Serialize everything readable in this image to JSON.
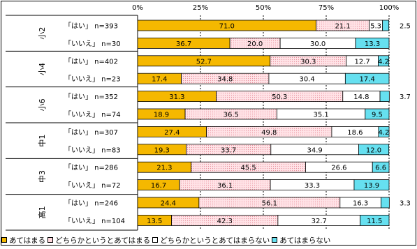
{
  "chart_data": {
    "type": "bar",
    "orientation": "horizontal",
    "stacked": true,
    "xlim": [
      0,
      100
    ],
    "x_ticks": [
      "0%",
      "25%",
      "50%",
      "75%",
      "100%"
    ],
    "groups": [
      "小2",
      "小4",
      "小6",
      "中1",
      "中3",
      "高1"
    ],
    "rows": [
      {
        "group": "小2",
        "label": "「はい」 n=393",
        "values": [
          71.0,
          21.1,
          5.3,
          2.5
        ]
      },
      {
        "group": "小2",
        "label": "「いいえ」 n=30",
        "values": [
          36.7,
          20.0,
          30.0,
          13.3
        ]
      },
      {
        "group": "小4",
        "label": "「はい」 n=402",
        "values": [
          52.7,
          30.3,
          12.7,
          4.2
        ]
      },
      {
        "group": "小4",
        "label": "「いいえ」 n=23",
        "values": [
          17.4,
          34.8,
          30.4,
          17.4
        ]
      },
      {
        "group": "小6",
        "label": "「はい」 n=352",
        "values": [
          31.3,
          50.3,
          14.8,
          3.7
        ]
      },
      {
        "group": "小6",
        "label": "「いいえ」 n=74",
        "values": [
          18.9,
          36.5,
          35.1,
          9.5
        ]
      },
      {
        "group": "中1",
        "label": "「はい」 n=307",
        "values": [
          27.4,
          49.8,
          18.6,
          4.2
        ]
      },
      {
        "group": "中1",
        "label": "「いいえ」 n=83",
        "values": [
          19.3,
          33.7,
          34.9,
          12.0
        ]
      },
      {
        "group": "中3",
        "label": "「はい」 n=286",
        "values": [
          21.3,
          45.5,
          26.6,
          6.6
        ]
      },
      {
        "group": "中3",
        "label": "「いいえ」 n=72",
        "values": [
          16.7,
          36.1,
          33.3,
          13.9
        ]
      },
      {
        "group": "高1",
        "label": "「はい」 n=246",
        "values": [
          24.4,
          56.1,
          16.3,
          3.3
        ]
      },
      {
        "group": "高1",
        "label": "「いいえ」 n=104",
        "values": [
          13.5,
          42.3,
          32.7,
          11.5
        ]
      }
    ],
    "data_labels": [
      [
        "71.0",
        "21.1",
        "5.3",
        "2.5"
      ],
      [
        "36.7",
        "20.0",
        "30.0",
        "13.3"
      ],
      [
        "52.7",
        "30.3",
        "12.7",
        "4.2"
      ],
      [
        "17.4",
        "34.8",
        "30.4",
        "17.4"
      ],
      [
        "31.3",
        "50.3",
        "14.8",
        "3.7"
      ],
      [
        "18.9",
        "36.5",
        "35.1",
        "9.5"
      ],
      [
        "27.4",
        "49.8",
        "18.6",
        "4.2"
      ],
      [
        "19.3",
        "33.7",
        "34.9",
        "12.0"
      ],
      [
        "21.3",
        "45.5",
        "26.6",
        "6.6"
      ],
      [
        "16.7",
        "36.1",
        "33.3",
        "13.9"
      ],
      [
        "24.4",
        "56.1",
        "16.3",
        "3.3"
      ],
      [
        "13.5",
        "42.3",
        "32.7",
        "11.5"
      ]
    ],
    "series": [
      {
        "name": "あてはまる",
        "color": "#F5B800"
      },
      {
        "name": "どちらかというとあてはまる",
        "color": "#FFD9DE",
        "pattern": "dots"
      },
      {
        "name": "どちらかというとあてはまらない",
        "color": "#FFFFFF"
      },
      {
        "name": "あてはまらない",
        "color": "#66E0F0"
      }
    ],
    "legend_position": "bottom",
    "grid": true
  }
}
